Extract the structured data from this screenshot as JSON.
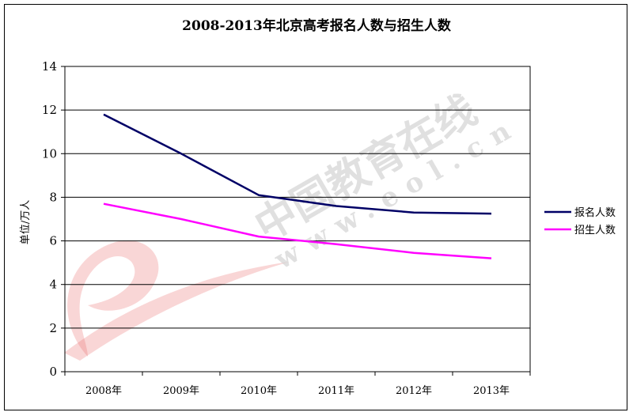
{
  "chart_data": {
    "type": "line",
    "title": "2008-2013年北京高考报名人数与招生人数",
    "ylabel": "单位/万人",
    "xlabel": "",
    "categories": [
      "2008年",
      "2009年",
      "2010年",
      "2011年",
      "2012年",
      "2013年"
    ],
    "ylim": [
      0,
      14
    ],
    "yticks": [
      0,
      2,
      4,
      6,
      8,
      10,
      12,
      14
    ],
    "grid": true,
    "legend_position": "right",
    "series": [
      {
        "name": "报名人数",
        "color": "#000066",
        "values": [
          11.8,
          10.0,
          8.1,
          7.6,
          7.3,
          7.25
        ]
      },
      {
        "name": "招生人数",
        "color": "#ff00ff",
        "values": [
          7.7,
          7.0,
          6.2,
          5.85,
          5.45,
          5.2
        ]
      }
    ]
  },
  "watermark": {
    "brand_text": "中国教育在线",
    "url_text": "www.eol.cn",
    "logo_color": "#e86a6a"
  }
}
